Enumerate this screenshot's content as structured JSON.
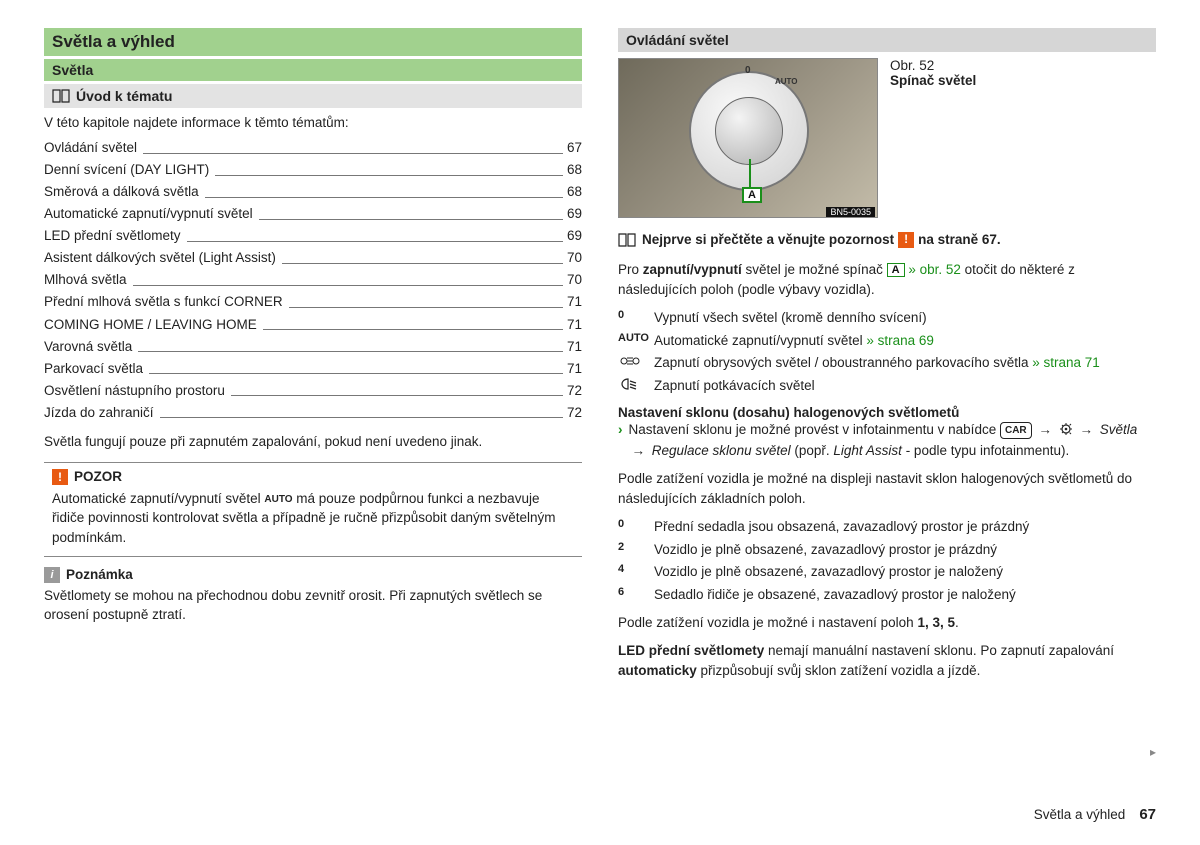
{
  "left": {
    "h1": "Světla a výhled",
    "h2": "Světla",
    "h3": "Úvod k tématu",
    "intro": "V této kapitole najdete informace k těmto tématům:",
    "toc": [
      {
        "label": "Ovládání světel",
        "page": "67"
      },
      {
        "label": "Denní svícení (DAY LIGHT)",
        "page": "68"
      },
      {
        "label": "Směrová a dálková světla",
        "page": "68"
      },
      {
        "label": "Automatické zapnutí/vypnutí světel",
        "page": "69"
      },
      {
        "label": "LED přední světlomety",
        "page": "69"
      },
      {
        "label": "Asistent dálkových světel (Light Assist)",
        "page": "70"
      },
      {
        "label": "Mlhová světla",
        "page": "70"
      },
      {
        "label": "Přední mlhová světla s funkcí CORNER",
        "page": "71"
      },
      {
        "label": "COMING HOME / LEAVING HOME",
        "page": "71"
      },
      {
        "label": "Varovná světla",
        "page": "71"
      },
      {
        "label": "Parkovací světla",
        "page": "71"
      },
      {
        "label": "Osvětlení nástupního prostoru",
        "page": "72"
      },
      {
        "label": "Jízda do zahraničí",
        "page": "72"
      }
    ],
    "after_toc": "Světla fungují pouze při zapnutém zapalování, pokud není uvedeno jinak.",
    "pozor_title": "POZOR",
    "pozor_body_1": "Automatické zapnutí/vypnutí světel ",
    "pozor_auto": "AUTO",
    "pozor_body_2": " má pouze podpůrnou funkci a ne­zbavuje řidiče povinnosti kontrolovat světla a případně je ručně přizpůsobit daným světelným podmínkám.",
    "note_title": "Poznámka",
    "note_body": "Světlomety se mohou na přechodnou dobu zevnitř orosit. Při zapnutých svět­lech se orosení postupně ztratí."
  },
  "right": {
    "h3": "Ovládání světel",
    "fig_num": "Obr. 52",
    "fig_cap": "Spínač světel",
    "fig_code": "BN5-0035",
    "a_label": "A",
    "read_pre": "Nejprve si přečtěte a věnujte pozornost ",
    "read_post": " na straně 67.",
    "dial_labels": {
      "zero": "0",
      "auto": "AUTO"
    },
    "para1_a": "Pro ",
    "para1_b": "zapnutí/vypnutí",
    "para1_c": " světel je možné spínač ",
    "para1_d": " » obr. 52",
    "para1_e": " otočit do některé z následujících poloh (podle výbavy vozidla).",
    "rows": [
      {
        "sym": "0",
        "txt": "Vypnutí všech světel (kromě denního svícení)"
      },
      {
        "sym": "AUTO",
        "txt_a": "Automatické zapnutí/vypnutí světel ",
        "link": "» strana 69"
      },
      {
        "sym": "park",
        "txt_a": "Zapnutí obrysových světel / oboustranného parkovacího světla ",
        "link": "» strana 71"
      },
      {
        "sym": "low",
        "txt": "Zapnutí potkávacích světel"
      }
    ],
    "adj_title": "Nastavení sklonu (dosahu) halogenových světlometů",
    "adj_line_a": "Nastavení sklonu je možné provést v infotainmentu v nabídce ",
    "adj_line_b": "Světla",
    "adj_line_c": "Regulace sklonu světel",
    "adj_line_d": " (popř. ",
    "adj_line_e": "Light Assist",
    "adj_line_f": " - podle typu infotainmentu).",
    "car_label": "CAR",
    "para2": "Podle zatížení vozidla je možné na displeji nastavit sklon halogenových světlo­metů do následujících základních poloh.",
    "levels": [
      {
        "n": "0",
        "txt": "Přední sedadla jsou obsazená, zavazadlový prostor je prázdný"
      },
      {
        "n": "2",
        "txt": "Vozidlo je plně obsazené, zavazadlový prostor je prázdný"
      },
      {
        "n": "4",
        "txt": "Vozidlo je plně obsazené, zavazadlový prostor je naložený"
      },
      {
        "n": "6",
        "txt": "Sedadlo řidiče je obsazené, zavazadlový prostor je naložený"
      }
    ],
    "para3_a": "Podle zatížení vozidla je možné i nastavení poloh ",
    "para3_b": "1, 3, 5",
    "para3_c": ".",
    "para4_a": "LED přední světlomety",
    "para4_b": " nemají manuální nastavení sklonu. Po zapnutí zapalo­vání ",
    "para4_c": "automaticky",
    "para4_d": " přizpůsobují svůj sklon zatížení vozidla a jízdě."
  },
  "footer": {
    "section": "Světla a výhled",
    "page": "67"
  }
}
